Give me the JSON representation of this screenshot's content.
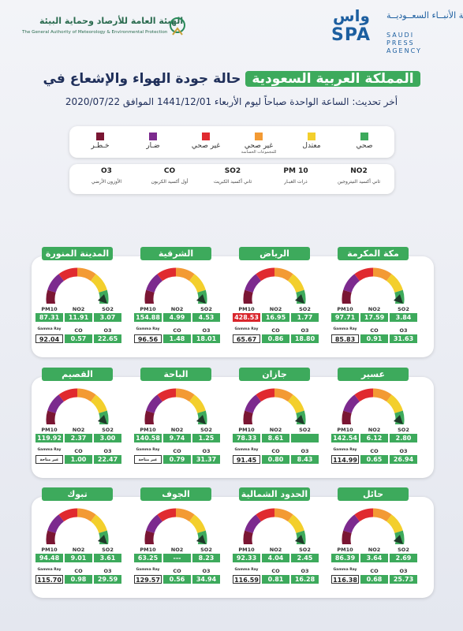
{
  "header": {
    "gov_name_ar": "الهيئة العامة للأرصاد وحماية البيئة",
    "gov_name_en": "The General Authority of Meteorology & Environmental Protection",
    "spa_name_ar": "وكالة الأنبــاء السعــوديــة",
    "spa_name_en": "SAUDI PRESS AGENCY",
    "spa_logo_ar": "واس",
    "spa_logo_en": "SPA"
  },
  "title": {
    "main": "حالة جودة الهواء والإشعاع في",
    "highlight": "المملكة العربية السعودية",
    "subtitle": "أخر تحديث: الساعة الواحدة صباحاً ليوم الأربعاء 1441/12/01 الموافق 2020/07/22"
  },
  "legend": [
    {
      "label": "صحي",
      "color": "#3daa5c"
    },
    {
      "label": "معتدل",
      "color": "#f3cf2c"
    },
    {
      "label": "غير صحي",
      "sub": "للمجموعات الحساسة",
      "color": "#f39a34"
    },
    {
      "label": "غير صحي",
      "color": "#e02a2f"
    },
    {
      "label": "ضـار",
      "color": "#7c2a8e"
    },
    {
      "label": "خـطـر",
      "color": "#7a1633"
    }
  ],
  "pollutants": [
    {
      "code": "NO2",
      "name": "ثاني أكسيد النيتروجين"
    },
    {
      "code": "PM 10",
      "name": "ذرات الغبـار"
    },
    {
      "code": "SO2",
      "name": "ثاني أكسيد الكبريت"
    },
    {
      "code": "CO",
      "name": "أول أكسيد الكربون"
    },
    {
      "code": "O3",
      "name": "الأوزون الأرضي"
    }
  ],
  "measure_labels": {
    "pm10": "PM10",
    "no2": "NO2",
    "so2": "SO2",
    "gamma": "Gamma Ray",
    "co": "CO",
    "o3": "O3"
  },
  "cities": [
    {
      "name": "مكة المكرمة",
      "so2": "3.84",
      "no2": "17.59",
      "pm10": "97.71",
      "o3": "31.63",
      "co": "0.91",
      "gamma": "85.83"
    },
    {
      "name": "الرياض",
      "so2": "1.77",
      "no2": "16.95",
      "pm10": "428.53",
      "pm10_color": "#d9262c",
      "o3": "18.80",
      "co": "0.86",
      "gamma": "65.67"
    },
    {
      "name": "الشرقية",
      "so2": "4.53",
      "no2": "4.99",
      "pm10": "154.88",
      "o3": "18.01",
      "co": "1.48",
      "gamma": "96.56"
    },
    {
      "name": "المدينة المنورة",
      "so2": "3.07",
      "no2": "11.91",
      "pm10": "87.31",
      "o3": "22.65",
      "co": "0.57",
      "gamma": "92.04"
    },
    {
      "name": "عسير",
      "so2": "2.80",
      "no2": "6.12",
      "pm10": "142.54",
      "o3": "26.94",
      "co": "0.65",
      "gamma": "114.99"
    },
    {
      "name": "جازان",
      "no2": "8.61",
      "pm10": "78.33",
      "o3": "8.43",
      "co": "0.80",
      "gamma": "91.45"
    },
    {
      "name": "الباحة",
      "so2": "1.25",
      "no2": "9.74",
      "pm10": "140.58",
      "o3": "31.37",
      "co": "0.79",
      "gamma": "غير متاحة"
    },
    {
      "name": "القصيم",
      "so2": "3.00",
      "no2": "2.37",
      "pm10": "119.92",
      "o3": "22.47",
      "co": "1.00",
      "gamma": "غير متاحة"
    },
    {
      "name": "حائل",
      "so2": "2.69",
      "no2": "3.64",
      "pm10": "86.39",
      "o3": "25.73",
      "co": "0.68",
      "gamma": "116.38"
    },
    {
      "name": "الحدود الشمالية",
      "so2": "2.45",
      "no2": "4.04",
      "pm10": "92.33",
      "o3": "16.28",
      "co": "0.81",
      "gamma": "116.59"
    },
    {
      "name": "الجوف",
      "so2": "8.23",
      "no2": "---",
      "pm10": "63.25",
      "o3": "34.94",
      "co": "0.56",
      "gamma": "129.57"
    },
    {
      "name": "تبوك",
      "so2": "3.61",
      "no2": "9.01",
      "pm10": "94.48",
      "o3": "29.59",
      "co": "0.98",
      "gamma": "115.70"
    }
  ]
}
